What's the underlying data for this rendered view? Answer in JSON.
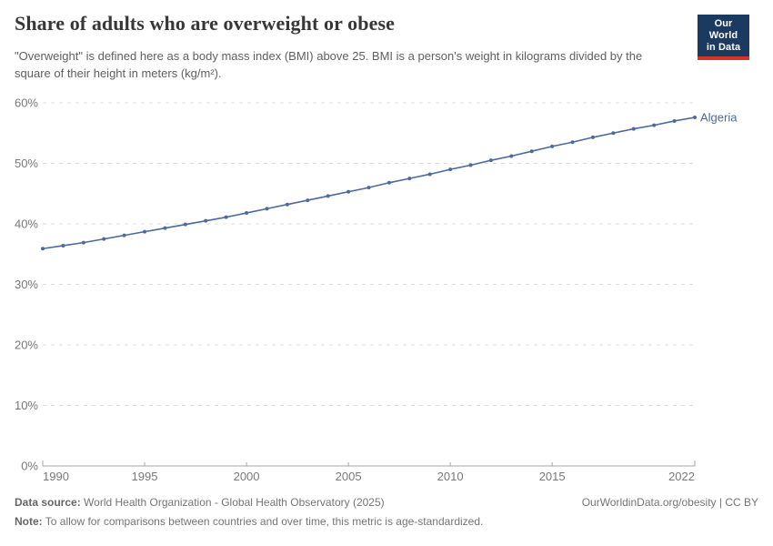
{
  "header": {
    "title": "Share of adults who are overweight or obese",
    "subtitle": "\"Overweight\" is defined here as a body mass index (BMI) above 25. BMI is a person's weight in kilograms divided by the square of their height in meters (kg/m²).",
    "logo_line1": "Our World",
    "logo_line2": "in Data"
  },
  "chart_data": {
    "type": "line",
    "title": "Share of adults who are overweight or obese",
    "entity": "Algeria",
    "unit": "%",
    "x": [
      1990,
      1991,
      1992,
      1993,
      1994,
      1995,
      1996,
      1997,
      1998,
      1999,
      2000,
      2001,
      2002,
      2003,
      2004,
      2005,
      2006,
      2007,
      2008,
      2009,
      2010,
      2011,
      2012,
      2013,
      2014,
      2015,
      2016,
      2017,
      2018,
      2019,
      2020,
      2021,
      2022
    ],
    "y": [
      35.9,
      36.4,
      36.9,
      37.5,
      38.1,
      38.7,
      39.3,
      39.9,
      40.5,
      41.1,
      41.8,
      42.5,
      43.2,
      43.9,
      44.6,
      45.3,
      46.0,
      46.8,
      47.5,
      48.2,
      49.0,
      49.7,
      50.5,
      51.2,
      52.0,
      52.8,
      53.5,
      54.3,
      55.0,
      55.7,
      56.3,
      57.0,
      57.6
    ],
    "xlim": [
      1990,
      2022
    ],
    "ylim": [
      0,
      60
    ],
    "xticks": [
      1990,
      1995,
      2000,
      2005,
      2010,
      2015,
      2022
    ],
    "yticks": [
      0,
      10,
      20,
      30,
      40,
      50,
      60
    ],
    "grid": "horizontal-dashed",
    "legend_position": "end-of-line",
    "line_color": "#4C6A9C"
  },
  "footer": {
    "source_label": "Data source:",
    "source_text": " World Health Organization - Global Health Observatory (2025)",
    "rights": "OurWorldinData.org/obesity | CC BY",
    "note_label": "Note:",
    "note_text": " To allow for comparisons between countries and over time, this metric is age-standardized."
  },
  "colors": {
    "navy": "#1b3a5f",
    "red": "#d8332b",
    "line": "#4C6A9C"
  }
}
